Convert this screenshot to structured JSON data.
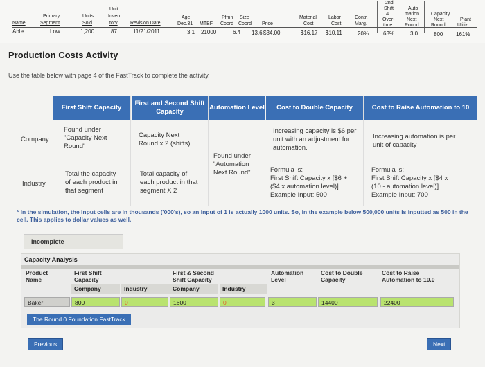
{
  "fasttrack": {
    "headers": {
      "name": "Name",
      "segment_top": "Primary",
      "segment": "Segment",
      "units_top": "Units",
      "units": "Sold",
      "inv_top1": "Unit",
      "inv_top2": "Inven",
      "inv": "tory",
      "rev": "Revision Date",
      "age_top": "Age",
      "age": "Dec.31",
      "mtbf": "MTBF",
      "pfmn_top": "Pfmn",
      "pfmn": "Coord",
      "size_top": "Size",
      "size": "Coord",
      "price": "Price",
      "mat_top": "Material",
      "mat": "Cost",
      "labor_top": "Labor",
      "labor": "Cost",
      "contr_top": "Contr.",
      "contr": "Marg.",
      "shift_top1": "2nd",
      "shift_top2": "Shift",
      "shift_top3": "&",
      "shift_top4": "Over-",
      "shift": "time",
      "auto_top1": "Auto",
      "auto_top2": "mation",
      "auto_top3": "Next",
      "auto": "Round",
      "cap_top1": "Capacity",
      "cap_top2": "Next",
      "cap": "Round",
      "plant_top": "Plant",
      "plant": "Utiliz."
    },
    "row": {
      "name": "Able",
      "segment": "Low",
      "units": "1,200",
      "inv": "87",
      "rev": "11/21/2011",
      "age": "3.1",
      "mtbf": "21000",
      "pfmn": "6.4",
      "size": "13.6",
      "price": "$34.00",
      "mat": "$16.17",
      "labor": "$10.11",
      "contr": "20%",
      "shift": "63%",
      "auto": "3.0",
      "cap": "800",
      "plant": "161%"
    }
  },
  "title": "Production Costs Activity",
  "instructions": "Use the table below with page 4 of the FastTrack to complete the activity.",
  "activity": {
    "headers": [
      "First Shift Capacity",
      "First and Second Shift Capacity",
      "Automation Level",
      "Cost to Double Capacity",
      "Cost to Raise Automation to 10"
    ],
    "company_label": "Company",
    "industry_label": "Industry",
    "company": {
      "first_shift": [
        "Found under",
        "\"Capacity Next",
        "Round\""
      ],
      "second_shift": [
        "Capacity Next",
        "Round x 2 (shifts)"
      ],
      "double": [
        "Increasing capacity is $6 per",
        "unit with an adjustment for",
        "automation."
      ],
      "raise": [
        "Increasing automation is per",
        "unit of capacity"
      ]
    },
    "automation": [
      "Found under",
      "\"Automation",
      "Next Round\""
    ],
    "industry": {
      "first_shift": [
        "Total the capacity",
        "of each product in",
        "that segment"
      ],
      "second_shift": [
        "Total capacity of",
        "each product in that",
        "segment X 2"
      ],
      "double": [
        "Formula is:",
        "First Shift Capacity x [$6  +",
        "($4 x automation level)]",
        "Example Input: 500"
      ],
      "raise": [
        "Formula is:",
        "First Shift Capacity x [$4 x",
        "(10 - automation level)]",
        "Example Input: 700"
      ]
    }
  },
  "note": "* In the simulation, the input cells are in thousands ('000's), so an input of 1 is actually 1000 units. So, in the example below 500,000 units is inputted as 500 in the cell. This applies to dollar values as well.",
  "status": "Incomplete",
  "capacity": {
    "title": "Capacity Analysis",
    "product_name": [
      "Product",
      "Name"
    ],
    "first_shift": [
      "First Shift",
      "Capacity"
    ],
    "second_shift": [
      "First & Second",
      "Shift Capacity"
    ],
    "automation": [
      "Automation",
      "Level"
    ],
    "double": [
      "Cost to Double",
      "Capacity"
    ],
    "raise": [
      "Cost to Raise",
      "Automation to 10.0"
    ],
    "company": "Company",
    "industry": "Industry",
    "row": {
      "name": "Baker",
      "first_company": "800",
      "first_industry": "0",
      "second_company": "1600",
      "second_industry": "0",
      "automation": "3",
      "double": "14400",
      "raise": "22400"
    },
    "fasttrack_link": "The Round 0 Foundation FastTrack"
  },
  "nav": {
    "previous": "Previous",
    "next": "Next"
  },
  "colors": {
    "accent": "#3a6fb5",
    "input_green": "#b9e36f",
    "note_blue": "#3d5f9c",
    "error_orange": "#e0602b"
  }
}
